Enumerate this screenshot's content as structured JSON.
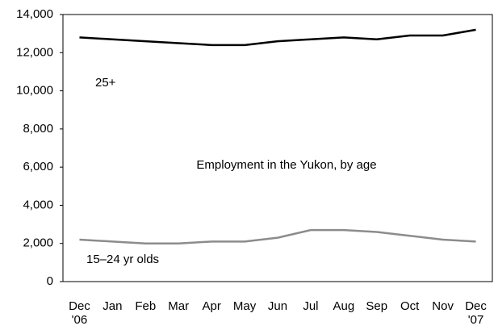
{
  "chart_data": {
    "type": "line",
    "title": "Employment in the Yukon, by age",
    "categories": [
      "Dec\n'06",
      "Jan",
      "Feb",
      "Mar",
      "Apr",
      "May",
      "Jun",
      "Jul",
      "Aug",
      "Sep",
      "Oct",
      "Nov",
      "Dec\n'07"
    ],
    "series": [
      {
        "name": "25+",
        "color": "#000000",
        "values": [
          12800,
          12700,
          12600,
          12500,
          12400,
          12400,
          12600,
          12700,
          12800,
          12700,
          12900,
          12900,
          13200
        ]
      },
      {
        "name": "15–24 yr olds",
        "color": "#8c8c8c",
        "values": [
          2200,
          2100,
          2000,
          2000,
          2100,
          2100,
          2300,
          2700,
          2700,
          2600,
          2400,
          2200,
          2100
        ]
      }
    ],
    "ylim": [
      0,
      14000
    ],
    "yticks": [
      0,
      {
        "value": 2000,
        "label": "2,000"
      },
      {
        "value": 4000,
        "label": "4,000"
      },
      {
        "value": 6000,
        "label": "6,000"
      },
      {
        "value": 8000,
        "label": "8,000"
      },
      {
        "value": 10000,
        "label": "10,000"
      },
      {
        "value": 12000,
        "label": "12,000"
      },
      {
        "value": 14000,
        "label": "14,000"
      }
    ],
    "grid": false
  }
}
